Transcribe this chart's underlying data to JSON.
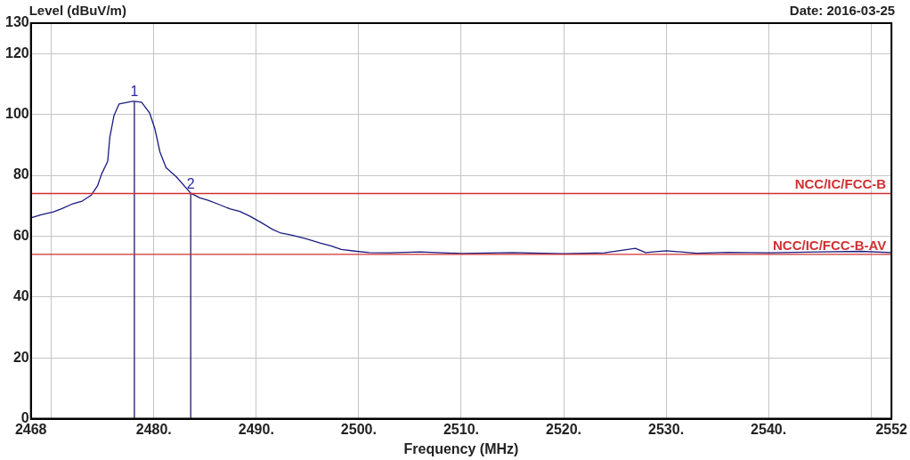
{
  "chart_data": {
    "type": "line",
    "xlabel": "Frequency (MHz)",
    "ylabel": "Level (dBuV/m)",
    "xlim": [
      2468,
      2552
    ],
    "ylim": [
      0,
      130
    ],
    "xticks": [
      {
        "value": 2468,
        "label": "2468"
      },
      {
        "value": 2470,
        "label": null
      },
      {
        "value": 2480,
        "label": "2480."
      },
      {
        "value": 2490,
        "label": "2490."
      },
      {
        "value": 2500,
        "label": "2500."
      },
      {
        "value": 2510,
        "label": "2510."
      },
      {
        "value": 2520,
        "label": "2520."
      },
      {
        "value": 2530,
        "label": "2530."
      },
      {
        "value": 2540,
        "label": "2540."
      },
      {
        "value": 2550,
        "label": null
      },
      {
        "value": 2552,
        "label": "2552"
      }
    ],
    "yticks": [
      0,
      20,
      40,
      60,
      80,
      100,
      120,
      130
    ],
    "grid": true,
    "legend": false,
    "marker": "none",
    "line_style": "solid",
    "series": [
      {
        "color": "#1a1a80",
        "x": [
          2468,
          2469,
          2470.2,
          2471,
          2472,
          2473,
          2473.9,
          2474.5,
          2474.9,
          2475.5,
          2475.7,
          2476.1,
          2476.6,
          2477.9,
          2478.1,
          2478.8,
          2479.6,
          2480.1,
          2480.6,
          2481.2,
          2482.2,
          2483.6,
          2484.5,
          2485.3,
          2486.3,
          2487.4,
          2488.4,
          2489.4,
          2490.4,
          2491.6,
          2492.4,
          2493.5,
          2494.8,
          2496.3,
          2497.3,
          2498.3,
          2499.8,
          2501,
          2503,
          2506,
          2510,
          2515,
          2520,
          2524,
          2527,
          2528,
          2530,
          2533,
          2536,
          2540,
          2545,
          2549,
          2552
        ],
        "values": [
          66,
          67,
          68,
          69,
          70.5,
          71.5,
          73.5,
          76.5,
          80.4,
          84.6,
          92.4,
          99.5,
          103.4,
          104.3,
          104.3,
          104,
          100.4,
          95.3,
          87.6,
          82.5,
          79.5,
          74.1,
          72.6,
          71.8,
          70.5,
          69,
          68.1,
          66.5,
          64.6,
          62.2,
          61,
          60.3,
          59.2,
          57.7,
          56.8,
          55.6,
          55,
          54.6,
          54.5,
          54.8,
          54.3,
          54.6,
          54.2,
          54.5,
          56,
          54.6,
          55.2,
          54.4,
          54.7,
          54.5,
          54.8,
          55,
          54.6
        ]
      },
      {
        "color": "#1a1a60",
        "x": [
          2478.1,
          2478.1
        ],
        "values": [
          0,
          104.3
        ]
      },
      {
        "color": "#1a1a60",
        "x": [
          2483.6,
          2483.6
        ],
        "values": [
          0,
          74.1
        ]
      }
    ],
    "ref_lines": [
      {
        "axis": "y",
        "value": 74,
        "label": "NCC/IC/FCC-B",
        "color": "#d03030"
      },
      {
        "axis": "y",
        "value": 54,
        "label": "NCC/IC/FCC-B-AV",
        "color": "#d03030"
      }
    ],
    "annotations": [
      "Date: 2016-03-25",
      {
        "text": "1",
        "x": 2478.1,
        "y": 104.3
      },
      {
        "text": "2",
        "x": 2483.6,
        "y": 74.1
      }
    ]
  }
}
